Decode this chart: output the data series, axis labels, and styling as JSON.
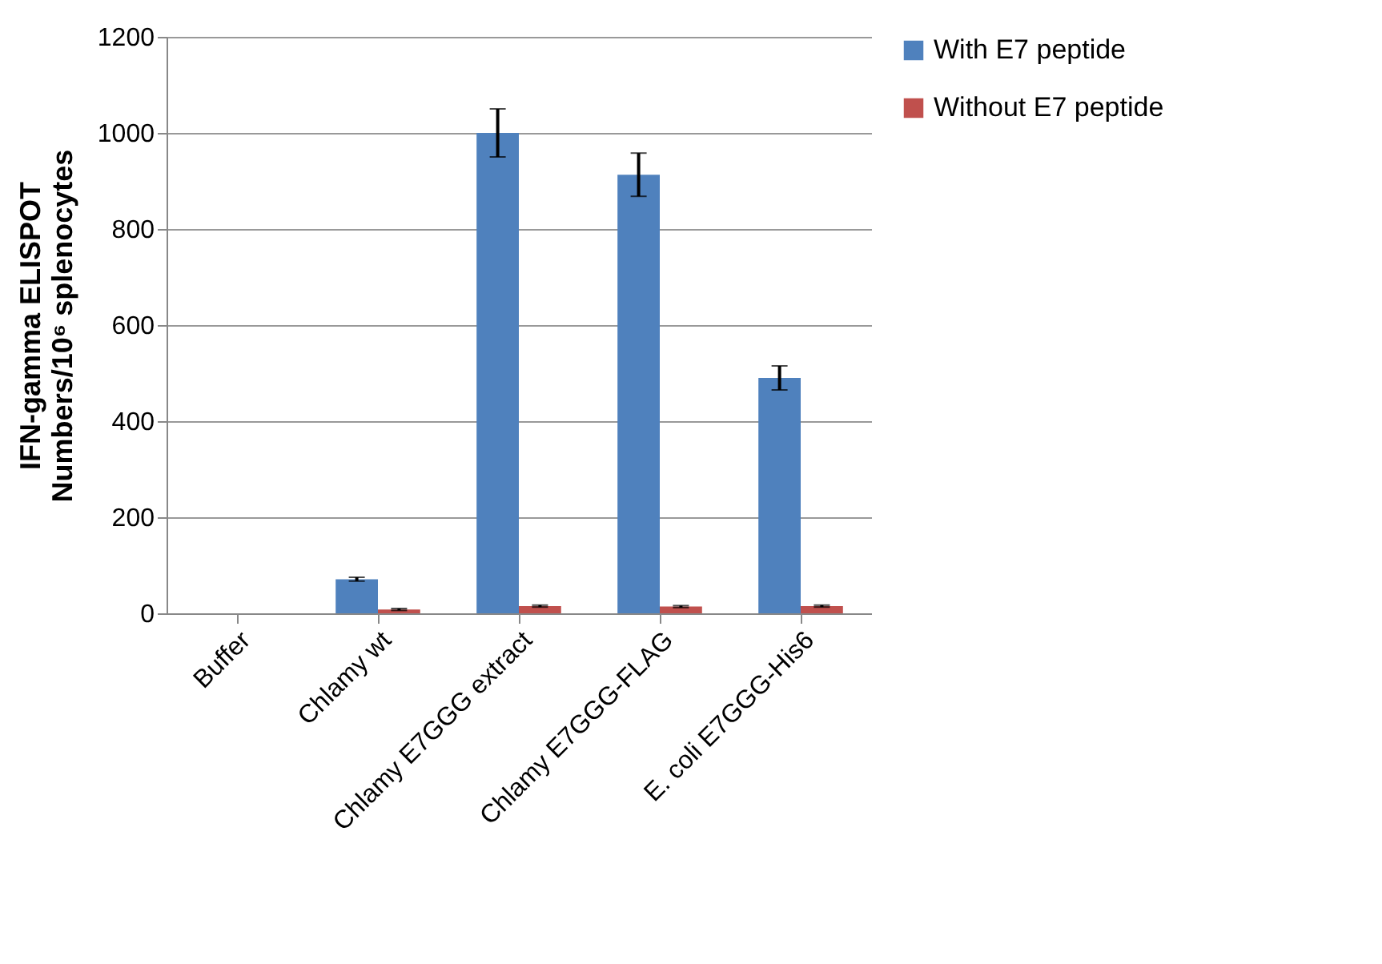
{
  "chart_data": {
    "type": "bar",
    "ylabel": "IFN-gamma ELISPOT\nNumbers/10⁶ splenocytes",
    "categories": [
      "Buffer",
      "Chlamy wt",
      "Chlamy E7GGG extract",
      "Chlamy E7GGG-FLAG",
      "E. coli E7GGG-His6"
    ],
    "series": [
      {
        "name": "With E7 peptide",
        "color": "#4f81bd",
        "values": [
          0,
          71,
          1000,
          913,
          490
        ],
        "errors": [
          null,
          4,
          50,
          45,
          25
        ]
      },
      {
        "name": "Without E7 peptide",
        "color": "#c0504d",
        "values": [
          0,
          8,
          15,
          14,
          15
        ],
        "errors": [
          null,
          2,
          2,
          2,
          2
        ]
      }
    ],
    "ylim": [
      0,
      1200
    ],
    "yticks": [
      0,
      200,
      400,
      600,
      800,
      1000,
      1200
    ],
    "grid": "y",
    "legend": "right"
  }
}
